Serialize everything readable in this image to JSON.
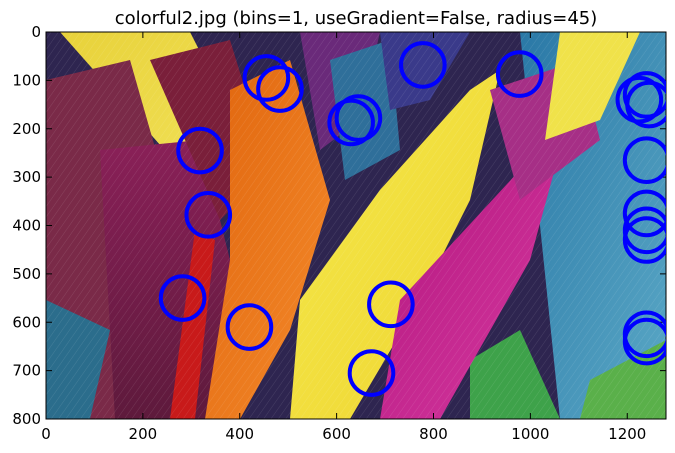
{
  "chart_data": {
    "type": "scatter",
    "title": "colorful2.jpg (bins=1, useGradient=False, radius=45)",
    "xlabel": "",
    "ylabel": "",
    "xlim": [
      0,
      1280
    ],
    "ylim": [
      800,
      0
    ],
    "y_axis_inverted": true,
    "grid": false,
    "background": "image of colorful feathers (yellow, orange, purple, magenta, teal, red)",
    "marker": {
      "shape": "circle-outline",
      "radius": 45,
      "color": "#0000ff"
    },
    "xticks": [
      "0",
      "200",
      "400",
      "600",
      "800",
      "1000",
      "1200"
    ],
    "yticks": [
      "0",
      "100",
      "200",
      "300",
      "400",
      "500",
      "600",
      "700",
      "800"
    ],
    "series": [
      {
        "points": [
          {
            "x": 455,
            "y": 95
          },
          {
            "x": 483,
            "y": 118
          },
          {
            "x": 318,
            "y": 245
          },
          {
            "x": 335,
            "y": 378
          },
          {
            "x": 282,
            "y": 550
          },
          {
            "x": 420,
            "y": 610
          },
          {
            "x": 630,
            "y": 187
          },
          {
            "x": 645,
            "y": 178
          },
          {
            "x": 778,
            "y": 68
          },
          {
            "x": 978,
            "y": 87
          },
          {
            "x": 712,
            "y": 563
          },
          {
            "x": 672,
            "y": 705
          },
          {
            "x": 1225,
            "y": 140
          },
          {
            "x": 1240,
            "y": 130
          },
          {
            "x": 1245,
            "y": 150
          },
          {
            "x": 1240,
            "y": 265
          },
          {
            "x": 1240,
            "y": 375
          },
          {
            "x": 1240,
            "y": 410
          },
          {
            "x": 1240,
            "y": 430
          },
          {
            "x": 1240,
            "y": 625
          },
          {
            "x": 1240,
            "y": 640
          }
        ]
      }
    ]
  }
}
